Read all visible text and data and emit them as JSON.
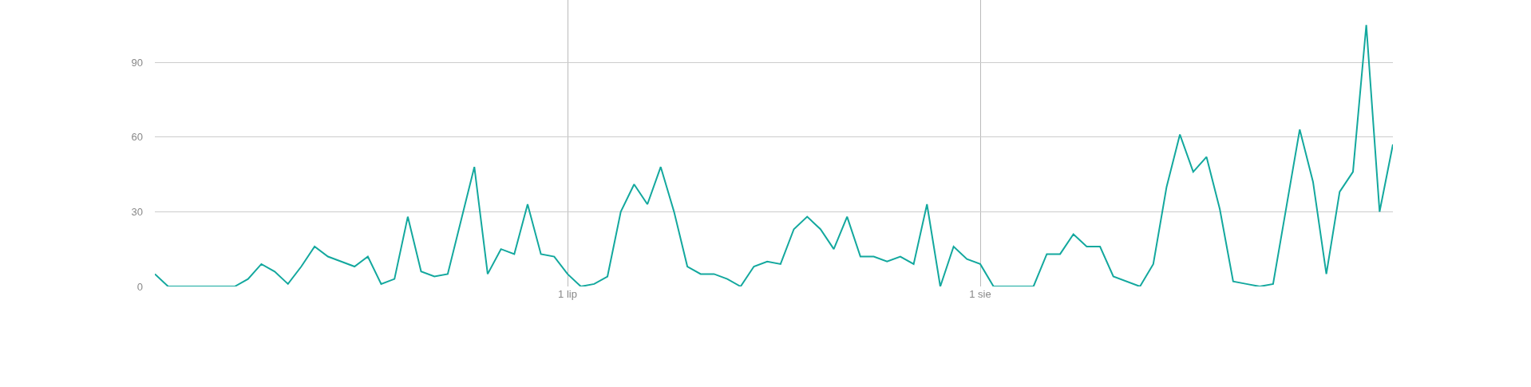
{
  "chart_data": {
    "type": "line",
    "x": [
      "--05-31",
      "--06-01",
      "--06-02",
      "--06-03",
      "--06-04",
      "--06-05",
      "--06-06",
      "--06-07",
      "--06-08",
      "--06-09",
      "--06-10",
      "--06-11",
      "--06-12",
      "--06-13",
      "--06-14",
      "--06-15",
      "--06-16",
      "--06-17",
      "--06-18",
      "--06-19",
      "--06-20",
      "--06-21",
      "--06-22",
      "--06-24",
      "--06-25",
      "--06-26",
      "--06-27",
      "--06-28",
      "--06-29",
      "--06-30",
      "--07-01",
      "--07-02",
      "--07-03",
      "--07-04",
      "--07-05",
      "--07-06",
      "--07-07",
      "--07-08",
      "--07-09",
      "--07-10",
      "--07-11",
      "--07-12",
      "--07-13",
      "--07-14",
      "--07-15",
      "--07-16",
      "--07-17",
      "--07-18",
      "--07-19",
      "--07-20",
      "--07-21",
      "--07-22",
      "--07-23",
      "--07-24",
      "--07-25",
      "--07-26",
      "--07-27",
      "--07-28",
      "--07-29",
      "--07-30",
      "--07-31",
      "--08-01",
      "--08-02",
      "--08-03",
      "--08-04",
      "--08-05",
      "--08-06",
      "--08-07",
      "--08-08",
      "--08-09",
      "--08-10",
      "--08-11",
      "--08-13",
      "--08-14",
      "--08-15",
      "--08-16",
      "--08-17",
      "--08-18",
      "--08-19",
      "--08-20",
      "--08-21",
      "--08-22",
      "--08-23",
      "--08-24",
      "--08-25",
      "--08-26",
      "--08-27",
      "--08-28",
      "--08-29",
      "--08-30",
      "--08-31",
      "--09-01"
    ],
    "series": [
      {
        "color": "#13a89e",
        "values": [
          5,
          0,
          0,
          0,
          0,
          0,
          0,
          3,
          9,
          6,
          1,
          8,
          16,
          12,
          10,
          8,
          12,
          1,
          3,
          28,
          6,
          4,
          5,
          48,
          5,
          15,
          13,
          33,
          13,
          12,
          5,
          0,
          1,
          4,
          30,
          41,
          33,
          48,
          30,
          8,
          5,
          5,
          3,
          0,
          8,
          10,
          9,
          23,
          28,
          23,
          15,
          28,
          12,
          12,
          10,
          12,
          9,
          33,
          0,
          16,
          11,
          9,
          0,
          0,
          0,
          0,
          13,
          13,
          21,
          16,
          16,
          4,
          0,
          9,
          40,
          61,
          46,
          52,
          31,
          2,
          1,
          0,
          1,
          32,
          63,
          42,
          5,
          38,
          46,
          105,
          30,
          57
        ]
      }
    ],
    "xlim": [
      "--05-31",
      "--09-01"
    ],
    "xticks": [
      {
        "value": "--07-01",
        "label": "1 lip"
      },
      {
        "value": "--08-01",
        "label": "1 sie"
      }
    ],
    "ylim": [
      0,
      115
    ],
    "yticks": [
      0,
      30,
      60,
      90
    ],
    "grid": true,
    "marker": "none",
    "line_style": "solid"
  }
}
